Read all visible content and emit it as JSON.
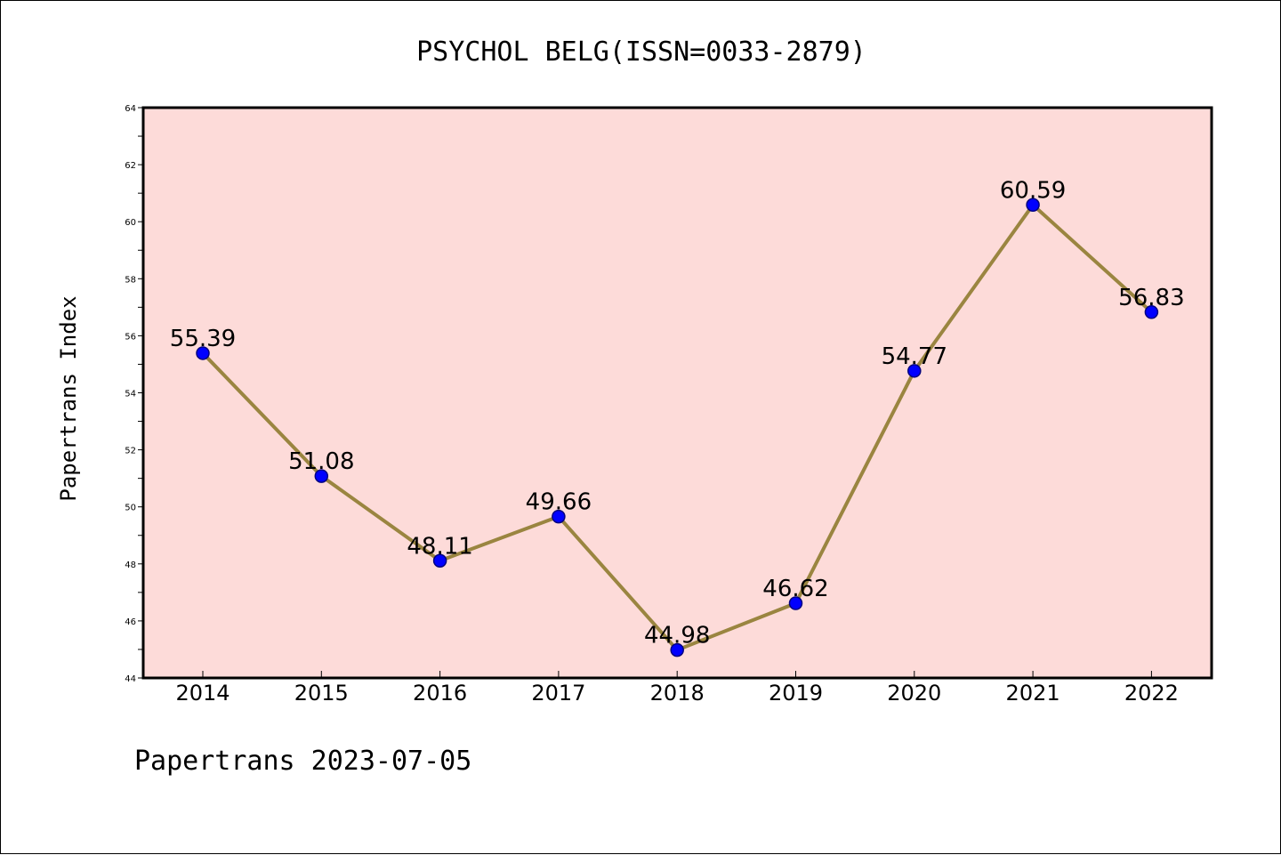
{
  "chart_data": {
    "type": "line",
    "title": "PSYCHOL BELG(ISSN=0033-2879)",
    "xlabel": "",
    "ylabel": "Papertrans Index",
    "footer": "Papertrans 2023-07-05",
    "categories": [
      "2014",
      "2015",
      "2016",
      "2017",
      "2018",
      "2019",
      "2020",
      "2021",
      "2022"
    ],
    "values": [
      55.39,
      51.08,
      48.11,
      49.66,
      44.98,
      46.62,
      54.77,
      60.59,
      56.83
    ],
    "value_labels": [
      "55.39",
      "51.08",
      "48.11",
      "49.66",
      "44.98",
      "46.62",
      "54.77",
      "60.59",
      "56.83"
    ],
    "ylim": [
      44,
      64
    ],
    "yticks": [
      44,
      46,
      48,
      50,
      52,
      54,
      56,
      58,
      60,
      62,
      64
    ],
    "grid": false,
    "legend": "none",
    "colors": {
      "plot_background": "#fddbd9",
      "line": "#9a8540",
      "marker": "#0000ff",
      "marker_edge": "#000080"
    }
  }
}
